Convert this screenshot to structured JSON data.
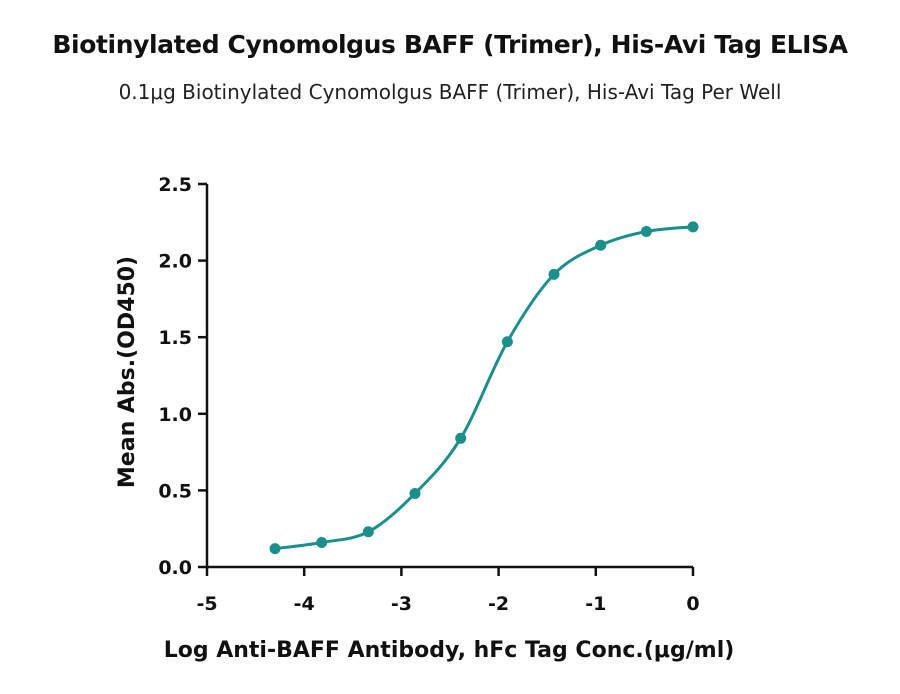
{
  "chart_data": {
    "type": "scatter",
    "title": "Biotinylated Cynomolgus BAFF (Trimer), His-Avi Tag ELISA",
    "subtitle": "0.1μg Biotinylated Cynomolgus BAFF (Trimer), His-Avi Tag Per Well",
    "xlabel": "Log Anti-BAFF Antibody, hFc Tag Conc.(μg/ml)",
    "ylabel": "Mean Abs.(OD450)",
    "xlim": [
      -5,
      0
    ],
    "ylim": [
      0,
      2.5
    ],
    "x_ticks": [
      "-5",
      "-4",
      "-3",
      "-2",
      "-1",
      "0"
    ],
    "y_ticks": [
      "0.0",
      "0.5",
      "1.0",
      "1.5",
      "2.0",
      "2.5"
    ],
    "grid": false,
    "series_color": "#1a8f8c",
    "fit": "sigmoidal curve through points",
    "series": [
      {
        "x": [
          -4.3,
          -3.82,
          -3.34,
          -2.86,
          -2.39,
          -1.91,
          -1.43,
          -0.95,
          -0.48,
          0.0
        ],
        "y": [
          0.12,
          0.16,
          0.23,
          0.48,
          0.84,
          1.47,
          1.91,
          2.1,
          2.19,
          2.22
        ]
      }
    ]
  }
}
